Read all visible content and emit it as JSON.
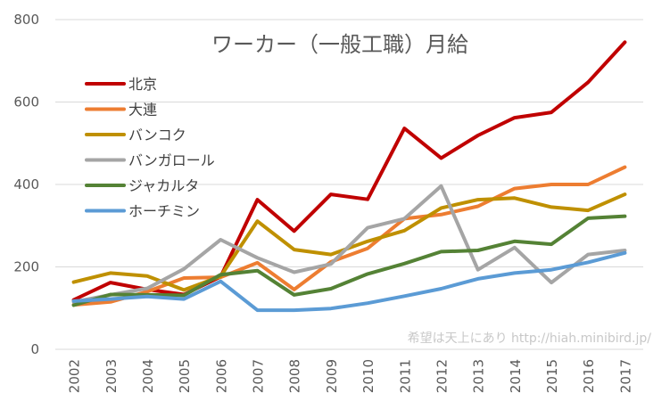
{
  "chart_data": {
    "type": "line",
    "title": "ワーカー（一般工職）月給",
    "xlabel": "",
    "ylabel": "",
    "categories": [
      "2002",
      "2003",
      "2004",
      "2005",
      "2006",
      "2007",
      "2008",
      "2009",
      "2010",
      "2011",
      "2012",
      "2013",
      "2014",
      "2015",
      "2016",
      "2017"
    ],
    "ylim": [
      0,
      800
    ],
    "yticks": [
      "0",
      "200",
      "400",
      "600",
      "800"
    ],
    "grid": true,
    "legend_position": "top-left",
    "series": [
      {
        "name": "北京",
        "color": "#c00000",
        "values": [
          120,
          162,
          145,
          133,
          176,
          363,
          287,
          376,
          364,
          536,
          464,
          519,
          562,
          575,
          648,
          745
        ]
      },
      {
        "name": "大連",
        "color": "#ed7d31",
        "values": [
          108,
          115,
          140,
          173,
          175,
          210,
          145,
          212,
          245,
          317,
          327,
          347,
          390,
          400,
          400,
          442
        ]
      },
      {
        "name": "バンコク",
        "color": "#bf9000",
        "values": [
          163,
          185,
          178,
          144,
          177,
          311,
          242,
          230,
          262,
          288,
          343,
          363,
          367,
          345,
          337,
          376
        ]
      },
      {
        "name": "バンガロール",
        "color": "#a5a5a5",
        "values": [
          115,
          132,
          148,
          195,
          266,
          222,
          187,
          207,
          295,
          317,
          396,
          193,
          247,
          162,
          230,
          240
        ]
      },
      {
        "name": "ジャカルタ",
        "color": "#548235",
        "values": [
          107,
          133,
          132,
          131,
          181,
          191,
          132,
          147,
          183,
          208,
          237,
          240,
          262,
          255,
          318,
          323
        ]
      },
      {
        "name": "ホーチミン",
        "color": "#5b9bd5",
        "values": [
          117,
          122,
          128,
          122,
          165,
          95,
          95,
          99,
          112,
          129,
          147,
          171,
          185,
          193,
          211,
          234
        ]
      }
    ]
  },
  "watermark": "希望は天上にあり http://hiah.minibird.jp/"
}
